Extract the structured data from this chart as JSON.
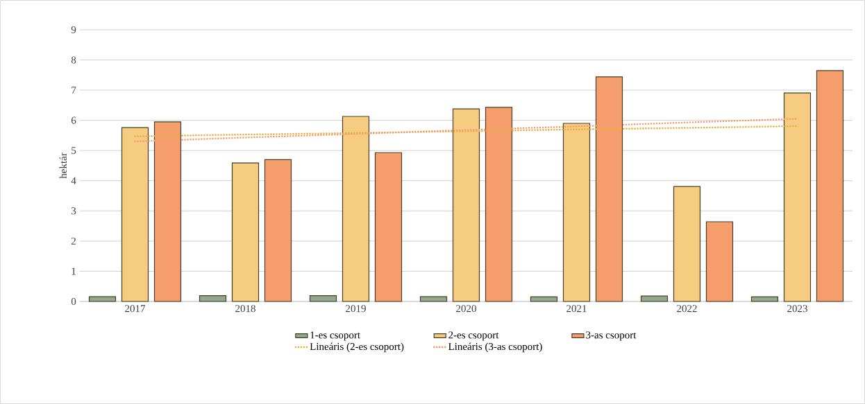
{
  "chart_data": {
    "type": "bar",
    "ylabel": "hektár",
    "categories": [
      "2017",
      "2018",
      "2019",
      "2020",
      "2021",
      "2022",
      "2023"
    ],
    "series": [
      {
        "name": "1-es csoport",
        "color": "#93a98b",
        "values": [
          0.16,
          0.19,
          0.19,
          0.16,
          0.15,
          0.18,
          0.15
        ]
      },
      {
        "name": "2-es csoport",
        "color": "#f6cc80",
        "values": [
          5.76,
          4.59,
          6.13,
          6.38,
          5.9,
          3.81,
          6.91
        ]
      },
      {
        "name": "3-as csoport",
        "color": "#f69e6b",
        "values": [
          5.95,
          4.7,
          4.93,
          6.43,
          7.44,
          2.64,
          7.65
        ]
      },
      {
        "name": "Lineáris (2-es csoport)",
        "type": "line",
        "line_style": "dotted",
        "color": "#e8ad45",
        "values": [
          5.47,
          5.53,
          5.58,
          5.64,
          5.7,
          5.75,
          5.81
        ]
      },
      {
        "name": "Lineáris (3-as csoport)",
        "type": "line",
        "line_style": "dotted",
        "color": "#f69e6b",
        "values": [
          5.3,
          5.43,
          5.55,
          5.68,
          5.8,
          5.93,
          6.05
        ]
      }
    ],
    "ylim": [
      0,
      9
    ],
    "yticks": [
      0,
      1,
      2,
      3,
      4,
      5,
      6,
      7,
      8,
      9
    ],
    "grid": "y",
    "legend": "bottom"
  }
}
